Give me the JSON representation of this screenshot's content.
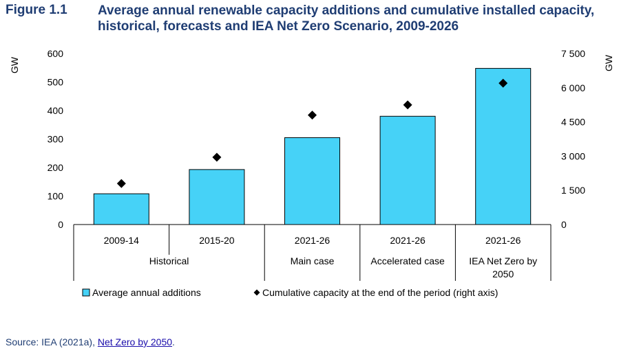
{
  "figure_label": "Figure 1.1",
  "figure_title": "Average annual renewable capacity additions and cumulative installed capacity, historical, forecasts and IEA Net Zero Scenario, 2009-2026",
  "source": {
    "prefix": "Source: IEA (2021a), ",
    "link_text": "Net Zero by 2050",
    "suffix": "."
  },
  "chart_data": {
    "type": "bar",
    "title": "Average annual renewable capacity additions and cumulative installed capacity, historical, forecasts and IEA Net Zero Scenario, 2009-2026",
    "ylabel": "GW",
    "y2label": "GW",
    "ylim": [
      0,
      600
    ],
    "y2lim": [
      0,
      7500
    ],
    "yticks": [
      "0",
      "100",
      "200",
      "300",
      "400",
      "500",
      "600"
    ],
    "y2ticks": [
      "0",
      "1 500",
      "3 000",
      "4 500",
      "6 000",
      "7 500"
    ],
    "categories": [
      "2009-14",
      "2015-20",
      "2021-26",
      "2021-26",
      "2021-26"
    ],
    "groups": [
      {
        "label": "Historical",
        "span": 2
      },
      {
        "label": "Main case",
        "span": 1
      },
      {
        "label": "Accelerated case",
        "span": 1
      },
      {
        "label": "IEA Net Zero by 2050",
        "span": 1
      }
    ],
    "series": [
      {
        "name": "Average annual additions",
        "type": "bar",
        "axis": "left",
        "color": "#46d2f7",
        "values": [
          108,
          193,
          305,
          380,
          548
        ]
      },
      {
        "name": "Cumulative capacity at the end of the period (right axis)",
        "type": "scatter",
        "axis": "right",
        "color": "#000000",
        "marker": "diamond",
        "values": [
          1800,
          2950,
          4800,
          5250,
          6200
        ]
      }
    ],
    "grid": false,
    "legend": "bottom"
  }
}
